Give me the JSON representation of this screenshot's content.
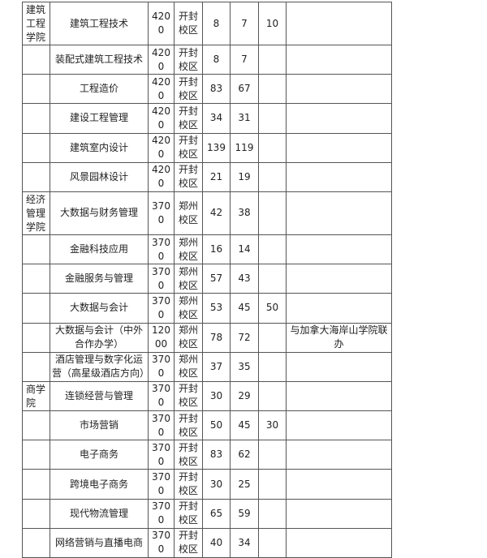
{
  "rows": [
    {
      "dept": "建筑工程学院",
      "major": "建筑工程技术",
      "fee": "4200",
      "campus": "开封校区",
      "a": "8",
      "b": "7",
      "c": "10",
      "note": ""
    },
    {
      "dept": "",
      "major": "装配式建筑工程技术",
      "fee": "4200",
      "campus": "开封校区",
      "a": "8",
      "b": "7",
      "c": "",
      "note": ""
    },
    {
      "dept": "",
      "major": "工程造价",
      "fee": "4200",
      "campus": "开封校区",
      "a": "83",
      "b": "67",
      "c": "",
      "note": ""
    },
    {
      "dept": "",
      "major": "建设工程管理",
      "fee": "4200",
      "campus": "开封校区",
      "a": "34",
      "b": "31",
      "c": "",
      "note": ""
    },
    {
      "dept": "",
      "major": "建筑室内设计",
      "fee": "4200",
      "campus": "开封校区",
      "a": "139",
      "b": "119",
      "c": "",
      "note": ""
    },
    {
      "dept": "",
      "major": "风景园林设计",
      "fee": "4200",
      "campus": "开封校区",
      "a": "21",
      "b": "19",
      "c": "",
      "note": ""
    },
    {
      "dept": "经济管理学院",
      "major": "大数据与财务管理",
      "fee": "3700",
      "campus": "郑州校区",
      "a": "42",
      "b": "38",
      "c": "",
      "note": ""
    },
    {
      "dept": "",
      "major": "金融科技应用",
      "fee": "3700",
      "campus": "郑州校区",
      "a": "16",
      "b": "14",
      "c": "",
      "note": ""
    },
    {
      "dept": "",
      "major": "金融服务与管理",
      "fee": "3700",
      "campus": "郑州校区",
      "a": "57",
      "b": "43",
      "c": "",
      "note": ""
    },
    {
      "dept": "",
      "major": "大数据与会计",
      "fee": "3700",
      "campus": "郑州校区",
      "a": "53",
      "b": "45",
      "c": "50",
      "note": ""
    },
    {
      "dept": "",
      "major": "大数据与会计（中外合作办学）",
      "fee": "12000",
      "campus": "郑州校区",
      "a": "78",
      "b": "72",
      "c": "",
      "note": "与加拿大海岸山学院联办"
    },
    {
      "dept": "",
      "major": "酒店管理与数字化运营（高星级酒店方向）",
      "fee": "3700",
      "campus": "郑州校区",
      "a": "37",
      "b": "35",
      "c": "",
      "note": ""
    },
    {
      "dept": "商学院",
      "major": "连锁经营与管理",
      "fee": "3700",
      "campus": "开封校区",
      "a": "30",
      "b": "29",
      "c": "",
      "note": ""
    },
    {
      "dept": "",
      "major": "市场营销",
      "fee": "3700",
      "campus": "开封校区",
      "a": "50",
      "b": "45",
      "c": "30",
      "note": ""
    },
    {
      "dept": "",
      "major": "电子商务",
      "fee": "3700",
      "campus": "开封校区",
      "a": "83",
      "b": "62",
      "c": "",
      "note": ""
    },
    {
      "dept": "",
      "major": "跨境电子商务",
      "fee": "3700",
      "campus": "开封校区",
      "a": "30",
      "b": "25",
      "c": "",
      "note": ""
    },
    {
      "dept": "",
      "major": "现代物流管理",
      "fee": "3700",
      "campus": "开封校区",
      "a": "65",
      "b": "59",
      "c": "",
      "note": ""
    },
    {
      "dept": "",
      "major": "网络营销与直播电商",
      "fee": "3700",
      "campus": "开封校区",
      "a": "40",
      "b": "34",
      "c": "",
      "note": ""
    }
  ]
}
